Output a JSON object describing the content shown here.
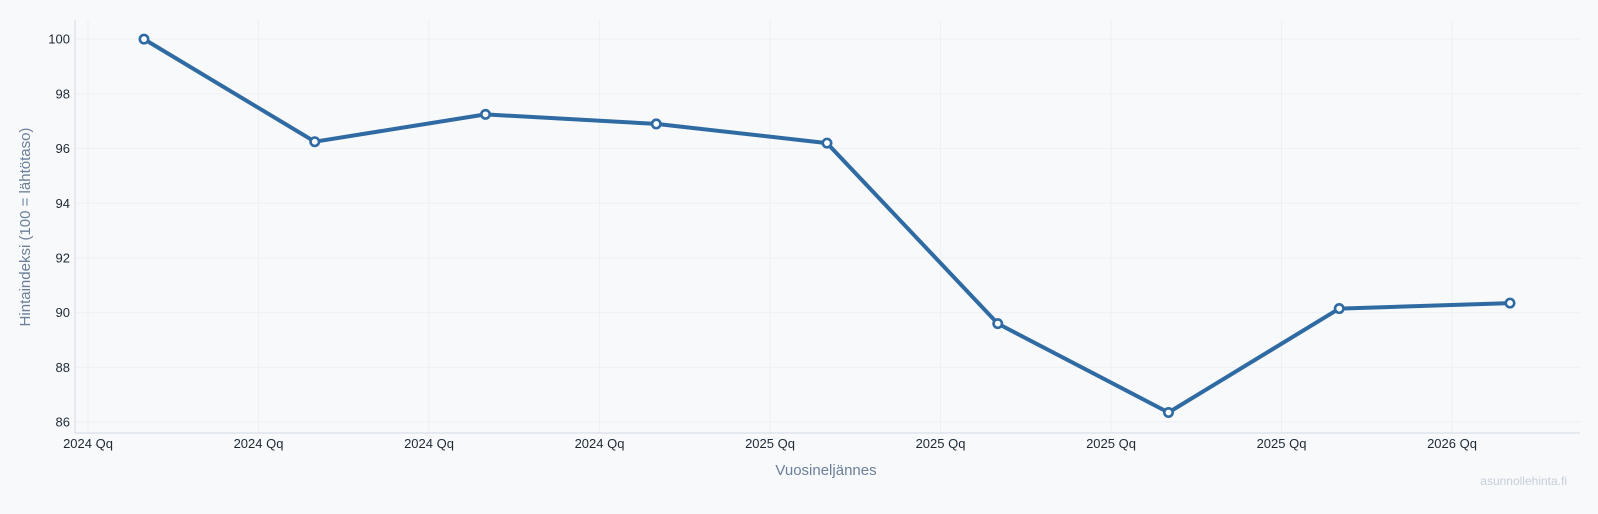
{
  "chart_data": {
    "type": "line",
    "title": "",
    "xlabel": "Vuosineljännes",
    "ylabel": "Hintaindeksi (100 = lähtötaso)",
    "x_tick_labels": [
      "2024 Qq",
      "2024 Qq",
      "2024 Qq",
      "2024 Qq",
      "2025 Qq",
      "2025 Qq",
      "2025 Qq",
      "2025 Qq",
      "2026 Qq"
    ],
    "y_ticks": [
      86,
      88,
      90,
      92,
      94,
      96,
      98,
      100
    ],
    "ylim": [
      85.6,
      100.7
    ],
    "grid": true,
    "series": [
      {
        "color": "#2f6aa3",
        "values": [
          100.0,
          96.25,
          97.25,
          96.9,
          96.2,
          89.6,
          86.35,
          90.15,
          90.35
        ]
      }
    ]
  },
  "watermark": "asunnollehinta.fi",
  "colors": {
    "background": "#f7f9fb",
    "line": "#2f6aa3",
    "grid": "#edf1f5",
    "axis": "#d3dbe4"
  }
}
